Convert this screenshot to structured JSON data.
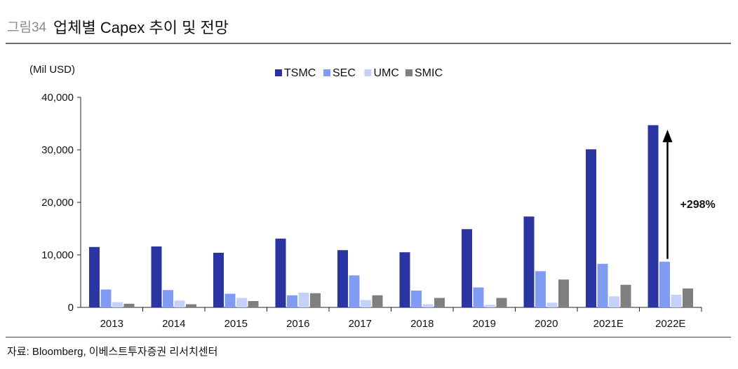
{
  "header": {
    "figure_label": "그림34",
    "title": "업체별 Capex 추이 및 전망"
  },
  "source": "자료: Bloomberg, 이베스트투자증권 리서치센터",
  "colors": {
    "TSMC": "#2b35a2",
    "SEC": "#7f9cf2",
    "UMC": "#c5d1fb",
    "SMIC": "#7f7f7f"
  },
  "chart_data": {
    "type": "bar",
    "title": "업체별 Capex 추이 및 전망",
    "ylabel": "(Mil USD)",
    "xlabel": "",
    "ylim": [
      0,
      40000
    ],
    "yticks": [
      0,
      10000,
      20000,
      30000,
      40000
    ],
    "ytick_labels": [
      "0",
      "10,000",
      "20,000",
      "30,000",
      "40,000"
    ],
    "grid": false,
    "legend_position": "top-center",
    "categories": [
      "2013",
      "2014",
      "2015",
      "2016",
      "2017",
      "2018",
      "2019",
      "2020",
      "2021E",
      "2022E"
    ],
    "series": [
      {
        "name": "TSMC",
        "values": [
          11500,
          11600,
          10400,
          13100,
          10900,
          10500,
          14900,
          17300,
          30100,
          34700
        ]
      },
      {
        "name": "SEC",
        "values": [
          3400,
          3300,
          2600,
          2300,
          6100,
          3200,
          3800,
          6900,
          8300,
          8700
        ]
      },
      {
        "name": "UMC",
        "values": [
          1000,
          1300,
          1800,
          2800,
          1400,
          600,
          500,
          900,
          2100,
          2400
        ]
      },
      {
        "name": "SMIC",
        "values": [
          700,
          600,
          1200,
          2700,
          2300,
          1800,
          1800,
          5300,
          4300,
          3600
        ]
      }
    ],
    "annotation": {
      "text": "+298%",
      "category": "2022E"
    }
  }
}
